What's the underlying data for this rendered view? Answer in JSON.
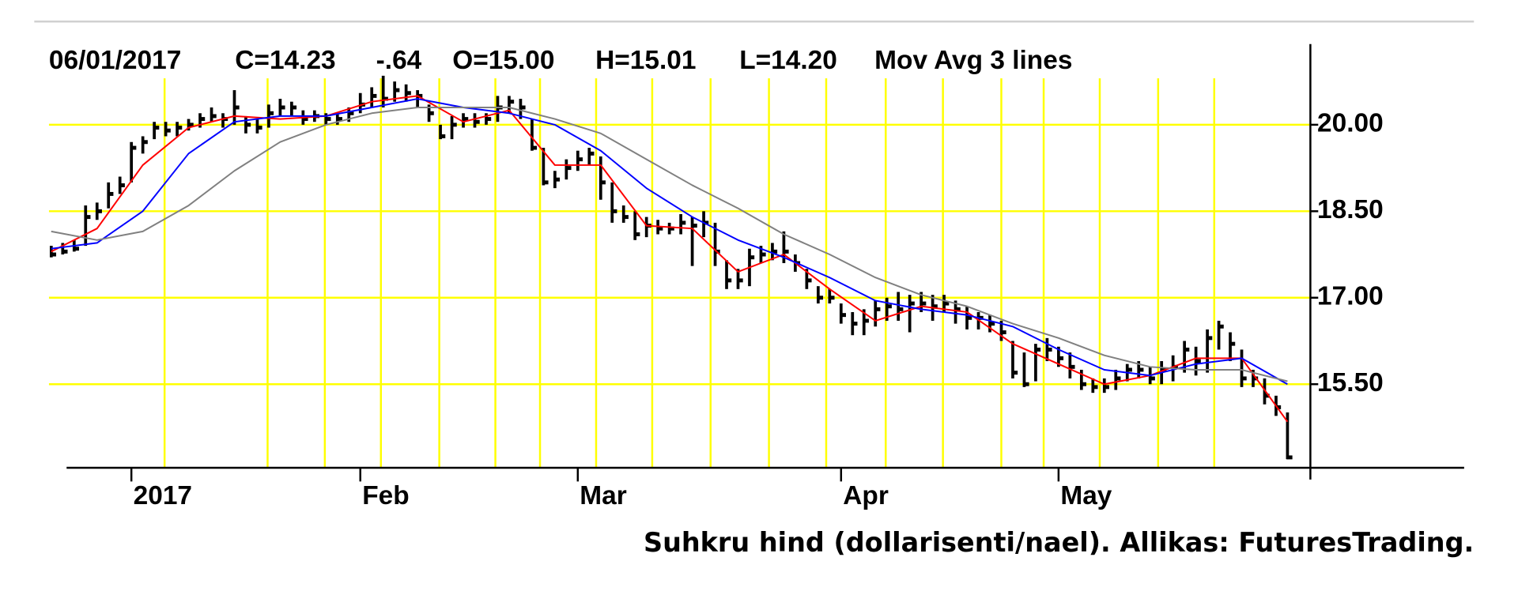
{
  "chart_data": {
    "type": "ohlc",
    "header": {
      "date": "06/01/2017",
      "close": "C=14.23",
      "change": "-.64",
      "open": "O=15.00",
      "high": "H=15.01",
      "low": "L=14.20",
      "indicator": "Mov Avg 3 lines"
    },
    "change_color": "#ff0000",
    "caption": "Suhkru hind (dollarisenti/nael). Allikas: FuturesTrading.",
    "xlim": [
      -0.2,
      110
    ],
    "xticks": [
      {
        "value": 7,
        "label": "2017"
      },
      {
        "value": 27,
        "label": "Feb"
      },
      {
        "value": 46,
        "label": "Mar"
      },
      {
        "value": 69,
        "label": "Apr"
      },
      {
        "value": 88,
        "label": "May"
      }
    ],
    "xgrid": [
      9.9,
      18.9,
      23.9,
      28.8,
      33.9,
      38.8,
      42.7,
      47.6,
      52.5,
      57.6,
      62.7,
      67.7,
      72.9,
      77.9,
      83.0,
      86.7,
      91.6,
      96.7,
      101.6
    ],
    "ylim": [
      14.05,
      21.4
    ],
    "yticks": [
      {
        "value": 15.5,
        "label": "15.50"
      },
      {
        "value": 17,
        "label": "17.00"
      },
      {
        "value": 18.5,
        "label": "18.50"
      },
      {
        "value": 20,
        "label": "20.00"
      }
    ],
    "grid": true,
    "grid_color": "#ffff00",
    "bars": {
      "color": "#000000",
      "high": [
        17.9,
        17.95,
        18.0,
        18.6,
        18.65,
        19.0,
        19.1,
        19.7,
        19.8,
        20.05,
        20.05,
        20.05,
        20.1,
        20.2,
        20.3,
        20.2,
        20.6,
        20.15,
        20.1,
        20.35,
        20.45,
        20.4,
        20.25,
        20.25,
        20.2,
        20.2,
        20.3,
        20.55,
        20.65,
        20.85,
        20.75,
        20.7,
        20.6,
        20.35,
        20.0,
        20.15,
        20.2,
        20.2,
        20.2,
        20.5,
        20.5,
        20.45,
        20.1,
        19.6,
        19.2,
        19.4,
        19.55,
        19.6,
        19.45,
        19.0,
        18.6,
        18.5,
        18.4,
        18.35,
        18.3,
        18.45,
        18.4,
        18.5,
        18.3,
        17.65,
        17.5,
        17.85,
        17.9,
        17.95,
        18.15,
        17.75,
        17.5,
        17.2,
        17.15,
        16.9,
        16.75,
        16.8,
        16.95,
        17.0,
        17.1,
        17.05,
        17.1,
        17.05,
        17.05,
        16.95,
        16.85,
        16.75,
        16.7,
        16.6,
        16.25,
        16.05,
        16.2,
        16.3,
        16.15,
        16.05,
        15.75,
        15.6,
        15.6,
        15.75,
        15.85,
        15.9,
        15.8,
        15.9,
        16.0,
        16.25,
        16.15,
        16.45,
        16.6,
        16.4,
        16.1,
        15.75,
        15.6,
        15.3,
        15.01
      ],
      "low": [
        17.7,
        17.75,
        17.8,
        17.9,
        18.35,
        18.55,
        18.8,
        19.0,
        19.5,
        19.75,
        19.8,
        19.8,
        19.9,
        19.95,
        20.05,
        19.95,
        20.0,
        19.85,
        19.85,
        19.95,
        20.15,
        20.15,
        20.0,
        20.05,
        20.0,
        20.0,
        20.05,
        20.2,
        20.3,
        20.3,
        20.4,
        20.4,
        20.3,
        20.05,
        19.75,
        19.75,
        19.95,
        19.95,
        20.0,
        20.05,
        20.2,
        20.1,
        19.55,
        18.95,
        18.9,
        19.05,
        19.2,
        19.3,
        18.7,
        18.3,
        18.3,
        18.0,
        18.05,
        18.1,
        18.1,
        18.1,
        17.55,
        18.05,
        17.55,
        17.15,
        17.15,
        17.2,
        17.6,
        17.65,
        17.6,
        17.45,
        17.15,
        16.9,
        16.9,
        16.55,
        16.35,
        16.35,
        16.5,
        16.6,
        16.6,
        16.4,
        16.75,
        16.6,
        16.75,
        16.55,
        16.45,
        16.45,
        16.4,
        16.25,
        15.6,
        15.45,
        15.55,
        15.9,
        15.8,
        15.6,
        15.4,
        15.35,
        15.35,
        15.4,
        15.55,
        15.6,
        15.5,
        15.5,
        15.55,
        15.7,
        15.65,
        15.7,
        16.1,
        15.9,
        15.45,
        15.45,
        15.15,
        14.95,
        14.2
      ],
      "close": [
        17.75,
        17.8,
        17.85,
        18.4,
        18.5,
        18.8,
        18.95,
        19.6,
        19.7,
        19.95,
        19.9,
        19.95,
        20.0,
        20.1,
        20.15,
        20.1,
        20.3,
        20.0,
        19.95,
        20.2,
        20.3,
        20.3,
        20.1,
        20.15,
        20.1,
        20.1,
        20.2,
        20.35,
        20.5,
        20.45,
        20.6,
        20.55,
        20.5,
        20.2,
        19.8,
        20.0,
        20.1,
        20.05,
        20.1,
        20.3,
        20.4,
        20.3,
        19.6,
        19.0,
        19.05,
        19.25,
        19.4,
        19.5,
        19.0,
        18.5,
        18.4,
        18.1,
        18.25,
        18.2,
        18.2,
        18.3,
        18.25,
        18.3,
        17.8,
        17.3,
        17.3,
        17.7,
        17.75,
        17.8,
        17.8,
        17.6,
        17.3,
        17.0,
        17.0,
        16.7,
        16.55,
        16.6,
        16.8,
        16.85,
        16.8,
        16.9,
        16.9,
        16.85,
        16.9,
        16.8,
        16.65,
        16.65,
        16.55,
        16.4,
        15.7,
        15.5,
        16.1,
        16.1,
        15.95,
        15.8,
        15.5,
        15.45,
        15.45,
        15.6,
        15.75,
        15.75,
        15.6,
        15.75,
        15.8,
        16.1,
        15.9,
        16.3,
        16.5,
        16.2,
        15.6,
        15.6,
        15.3,
        15.1,
        14.23
      ]
    },
    "moving_averages": {
      "x": [
        0,
        4,
        8,
        12,
        16,
        20,
        24,
        28,
        32,
        36,
        40,
        44,
        48,
        52,
        56,
        60,
        64,
        68,
        72,
        76,
        80,
        84,
        88,
        92,
        96,
        100,
        104,
        108
      ],
      "series": [
        {
          "color": "#ff0000",
          "values": [
            17.8,
            18.2,
            19.3,
            19.95,
            20.15,
            20.1,
            20.15,
            20.4,
            20.5,
            20.05,
            20.25,
            19.3,
            19.3,
            18.25,
            18.2,
            17.45,
            17.75,
            17.15,
            16.6,
            16.85,
            16.75,
            16.2,
            15.85,
            15.5,
            15.65,
            15.95,
            15.95,
            14.85
          ]
        },
        {
          "color": "#0000ff",
          "values": [
            17.85,
            17.95,
            18.5,
            19.5,
            20.05,
            20.15,
            20.15,
            20.3,
            20.45,
            20.3,
            20.2,
            20.0,
            19.55,
            18.9,
            18.4,
            18.0,
            17.7,
            17.35,
            16.95,
            16.8,
            16.7,
            16.5,
            16.1,
            15.75,
            15.65,
            15.85,
            15.95,
            15.5
          ]
        },
        {
          "color": "#808080",
          "values": [
            18.15,
            18.0,
            18.15,
            18.6,
            19.2,
            19.7,
            20.0,
            20.2,
            20.3,
            20.3,
            20.3,
            20.1,
            19.85,
            19.4,
            18.95,
            18.55,
            18.1,
            17.75,
            17.35,
            17.05,
            16.85,
            16.55,
            16.3,
            16.0,
            15.8,
            15.75,
            15.75,
            15.55
          ]
        }
      ]
    }
  }
}
